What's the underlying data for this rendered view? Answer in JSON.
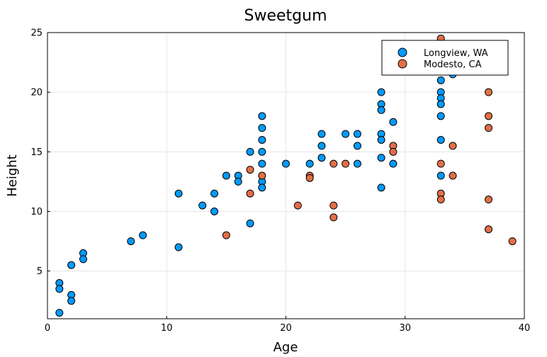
{
  "chart_data": {
    "type": "scatter",
    "title": "Sweetgum",
    "xlabel": "Age",
    "ylabel": "Height",
    "xlim": [
      0,
      40
    ],
    "ylim": [
      1,
      25
    ],
    "xticks": [
      0,
      10,
      20,
      30,
      40
    ],
    "yticks": [
      5,
      10,
      15,
      20,
      25
    ],
    "grid": true,
    "legend_position": "top-right",
    "series": [
      {
        "name": "Longview, WA",
        "color": "#009AFA",
        "points": [
          [
            1,
            4
          ],
          [
            1,
            3.5
          ],
          [
            1,
            1.5
          ],
          [
            2,
            5.5
          ],
          [
            2,
            3
          ],
          [
            2,
            2.5
          ],
          [
            3,
            6.5
          ],
          [
            3,
            6
          ],
          [
            7,
            7.5
          ],
          [
            8,
            8
          ],
          [
            11,
            11.5
          ],
          [
            11,
            7
          ],
          [
            13,
            10.5
          ],
          [
            14,
            11.5
          ],
          [
            14,
            10
          ],
          [
            15,
            13
          ],
          [
            16,
            13
          ],
          [
            16,
            12.5
          ],
          [
            17,
            15
          ],
          [
            17,
            9
          ],
          [
            18,
            18
          ],
          [
            18,
            17
          ],
          [
            18,
            16
          ],
          [
            18,
            15
          ],
          [
            18,
            14
          ],
          [
            18,
            12.5
          ],
          [
            18,
            12
          ],
          [
            20,
            14
          ],
          [
            22,
            14
          ],
          [
            23,
            16.5
          ],
          [
            23,
            15.5
          ],
          [
            23,
            14.5
          ],
          [
            25,
            16.5
          ],
          [
            26,
            16.5
          ],
          [
            26,
            15.5
          ],
          [
            26,
            14
          ],
          [
            28,
            20
          ],
          [
            28,
            19
          ],
          [
            28,
            18.5
          ],
          [
            28,
            16.5
          ],
          [
            28,
            16
          ],
          [
            28,
            14.5
          ],
          [
            28,
            12
          ],
          [
            29,
            17.5
          ],
          [
            29,
            14
          ],
          [
            33,
            22.5
          ],
          [
            33,
            21
          ],
          [
            33,
            20
          ],
          [
            33,
            19.5
          ],
          [
            33,
            19
          ],
          [
            33,
            18
          ],
          [
            33,
            16
          ],
          [
            33,
            13
          ],
          [
            34,
            22
          ],
          [
            34,
            21.5
          ]
        ]
      },
      {
        "name": "Modesto, CA",
        "color": "#E26F46",
        "points": [
          [
            15,
            8
          ],
          [
            17,
            13.5
          ],
          [
            17,
            11.5
          ],
          [
            18,
            13
          ],
          [
            21,
            10.5
          ],
          [
            22,
            13
          ],
          [
            22,
            12.8
          ],
          [
            24,
            14
          ],
          [
            24,
            10.5
          ],
          [
            24,
            9.5
          ],
          [
            25,
            14
          ],
          [
            29,
            15.5
          ],
          [
            29,
            15
          ],
          [
            33,
            24.5
          ],
          [
            33,
            14
          ],
          [
            33,
            11.5
          ],
          [
            33,
            11
          ],
          [
            34,
            15.5
          ],
          [
            34,
            13
          ],
          [
            37,
            20
          ],
          [
            37,
            18
          ],
          [
            37,
            17
          ],
          [
            37,
            11
          ],
          [
            37,
            8.5
          ],
          [
            39,
            7.5
          ]
        ]
      }
    ]
  }
}
